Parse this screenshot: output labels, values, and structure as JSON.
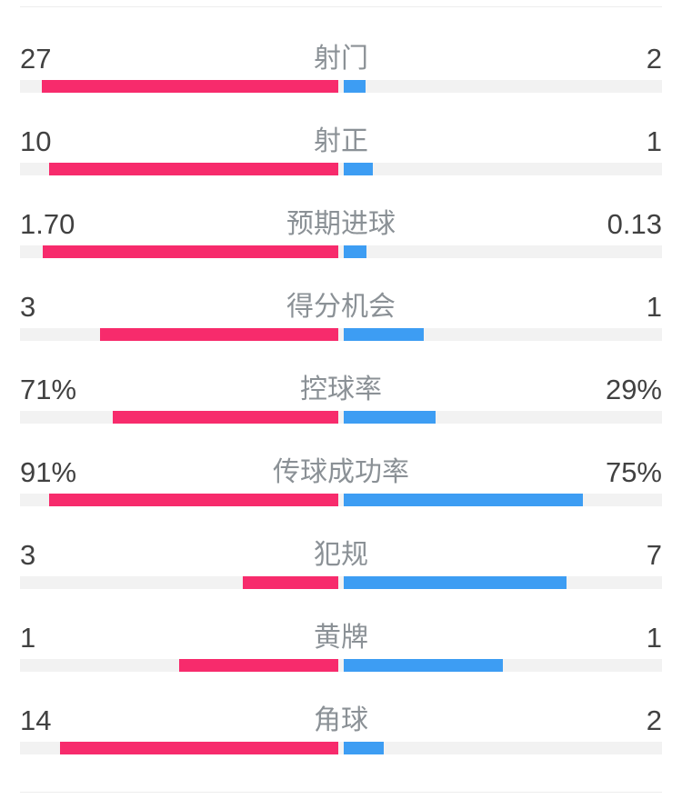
{
  "colors": {
    "home": "#f72b6c",
    "away": "#3d9df3",
    "track": "#f2f2f2",
    "value_text": "#414141",
    "label_text": "#8b9196",
    "divider": "#ededed"
  },
  "chart_data": {
    "type": "bar",
    "orientation": "horizontal-mirrored-from-center",
    "grid": false,
    "legend_position": "none",
    "description": "Football match head-to-head statistics; left (home) bars in pink grow leftward from center, right (away) bars in blue grow rightward; count stats scaled by share of total, percent stats scaled by value/100",
    "categories": [
      "射门",
      "射正",
      "预期进球",
      "得分机会",
      "控球率",
      "传球成功率",
      "犯规",
      "黄牌",
      "角球"
    ],
    "series": [
      {
        "name": "home",
        "values": [
          27,
          10,
          1.7,
          3,
          71,
          91,
          3,
          1,
          14
        ]
      },
      {
        "name": "away",
        "values": [
          2,
          1,
          0.13,
          1,
          29,
          75,
          7,
          1,
          2
        ]
      }
    ],
    "stats": [
      {
        "label": "射门",
        "home": "27",
        "away": "2",
        "home_value": 27,
        "away_value": 2,
        "scale": "share-of-total"
      },
      {
        "label": "射正",
        "home": "10",
        "away": "1",
        "home_value": 10,
        "away_value": 1,
        "scale": "share-of-total"
      },
      {
        "label": "预期进球",
        "home": "1.70",
        "away": "0.13",
        "home_value": 1.7,
        "away_value": 0.13,
        "scale": "share-of-total"
      },
      {
        "label": "得分机会",
        "home": "3",
        "away": "1",
        "home_value": 3,
        "away_value": 1,
        "scale": "share-of-total"
      },
      {
        "label": "控球率",
        "home": "71%",
        "away": "29%",
        "home_value": 71,
        "away_value": 29,
        "scale": "percent"
      },
      {
        "label": "传球成功率",
        "home": "91%",
        "away": "75%",
        "home_value": 91,
        "away_value": 75,
        "scale": "percent"
      },
      {
        "label": "犯规",
        "home": "3",
        "away": "7",
        "home_value": 3,
        "away_value": 7,
        "scale": "share-of-total"
      },
      {
        "label": "黄牌",
        "home": "1",
        "away": "1",
        "home_value": 1,
        "away_value": 1,
        "scale": "share-of-total"
      },
      {
        "label": "角球",
        "home": "14",
        "away": "2",
        "home_value": 14,
        "away_value": 2,
        "scale": "share-of-total"
      }
    ]
  }
}
